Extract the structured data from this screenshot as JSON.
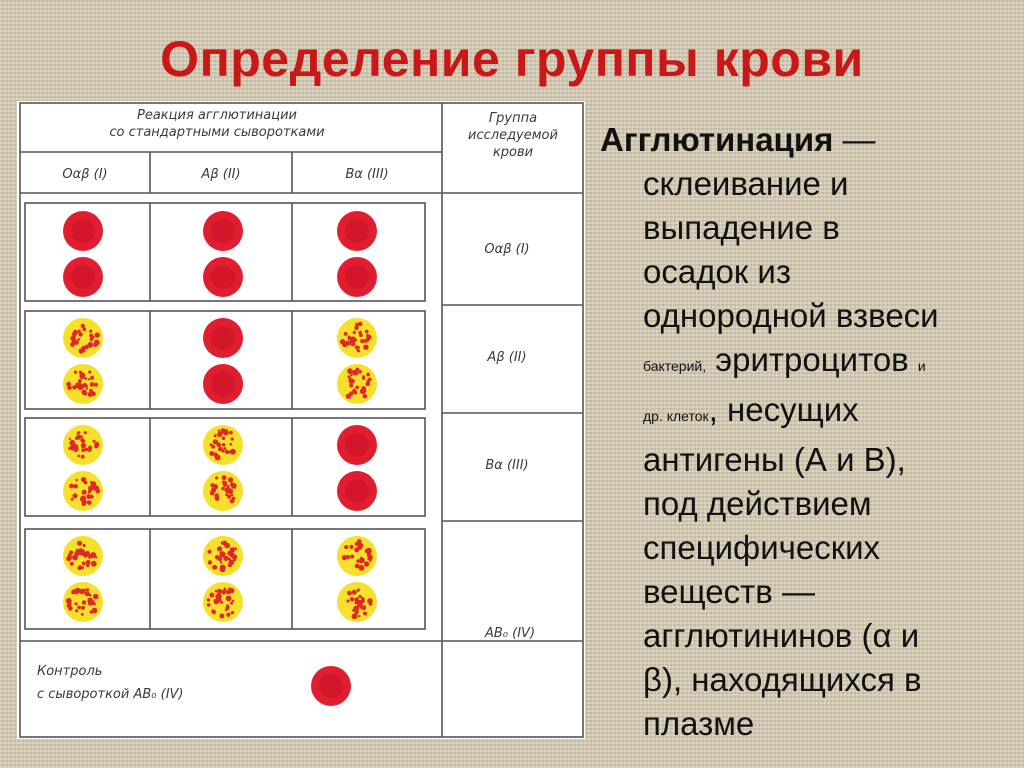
{
  "title": "Определение группы крови",
  "table": {
    "header_reaction": [
      "Реакция агглютинации",
      "со стандартными сыворотками"
    ],
    "header_group": [
      "Группа",
      "исследуемой",
      "крови"
    ],
    "serum_columns": [
      "Oαβ (I)",
      "Aβ (II)",
      "Bα (III)"
    ],
    "rows": [
      {
        "group_label": "Oαβ (I)",
        "agglutination": [
          false,
          false,
          false
        ]
      },
      {
        "group_label": "Aβ (II)",
        "agglutination": [
          true,
          false,
          true
        ]
      },
      {
        "group_label": "Bα (III)",
        "agglutination": [
          true,
          true,
          false
        ]
      },
      {
        "group_label": "AB₀ (IV)",
        "agglutination": [
          true,
          true,
          true
        ]
      }
    ],
    "control_label": [
      "Контроль",
      "с сывороткой  AB₀ (IV)"
    ],
    "control_agglutination": false
  },
  "colors": {
    "title": "#c81818",
    "red_cell": "#e01e30",
    "agglutinated_bg": "#f6e02c",
    "agglutinated_clumps": "#e02828",
    "grid_line": "#555555"
  },
  "definition": {
    "term": "Агглютинация",
    "lines": [
      " — ",
      "склеивание и",
      "выпадение в",
      "осадок из",
      "однородной взвеси",
      "бактерий,",
      " эритроцитов ",
      "и",
      "др. клеток",
      ", несущих",
      "антигены (А и В),",
      "под действием",
      "специфических",
      "веществ —",
      "агглютининов (α и",
      "β), находящихся в",
      "плазме"
    ]
  }
}
